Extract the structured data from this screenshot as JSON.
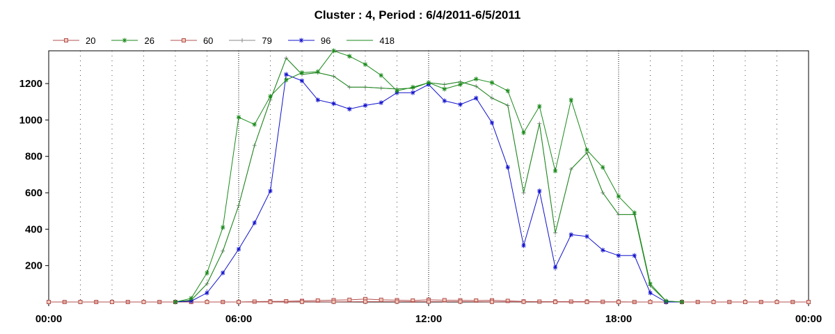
{
  "chart_data": {
    "type": "line",
    "title": "Cluster : 4, Period : 6/4/2011-6/5/2011",
    "xlabel": "",
    "ylabel": "",
    "x_unit": "hour",
    "xlim": [
      0,
      24
    ],
    "ylim": [
      0,
      1380
    ],
    "x_ticks": [
      0,
      6,
      12,
      18,
      24
    ],
    "x_tick_labels": [
      "00:00",
      "06:00",
      "12:00",
      "18:00",
      "00:00"
    ],
    "y_ticks": [
      200,
      400,
      600,
      800,
      1000,
      1200
    ],
    "y_tick_labels": [
      "200",
      "400",
      "600",
      "800",
      "1000",
      "1200"
    ],
    "grid": "vertical dotted",
    "legend_position": "top-left",
    "series": [
      {
        "name": "20",
        "color": "#b05050",
        "marker": "square",
        "x": [
          0.5,
          1,
          1.5,
          2,
          2.5,
          3,
          3.5,
          4,
          4.5,
          5,
          5.5,
          6,
          6.5,
          7,
          7.5,
          8,
          8.5,
          9,
          9.5,
          10,
          10.5,
          11,
          11.5,
          12,
          12.5,
          13,
          13.5,
          14,
          14.5,
          15,
          15.5,
          16,
          16.5,
          17,
          17.5,
          18,
          18.5,
          19,
          19.5,
          20,
          20.5,
          21,
          21.5,
          22,
          22.5,
          23,
          23.5,
          24
        ],
        "y": [
          0,
          0,
          0,
          0,
          0,
          0,
          0,
          0,
          0,
          0,
          0,
          0,
          2,
          3,
          4,
          6,
          8,
          10,
          12,
          16,
          12,
          10,
          8,
          12,
          10,
          9,
          8,
          9,
          6,
          3,
          2,
          2,
          2,
          2,
          1,
          1,
          0,
          0,
          0,
          0,
          0,
          0,
          0,
          0,
          0,
          0,
          0,
          0
        ]
      },
      {
        "name": "26",
        "color": "#1a8a1a",
        "marker": "star",
        "x": [
          4,
          4.5,
          5,
          5.5,
          6,
          6.5,
          7,
          7.5,
          8,
          8.5,
          9,
          9.5,
          10,
          10.5,
          11,
          11.5,
          12,
          12.5,
          13,
          13.5,
          14,
          14.5,
          15,
          15.5,
          16,
          16.5,
          17,
          17.5,
          18,
          18.5,
          19,
          19.5,
          20
        ],
        "y": [
          0,
          20,
          160,
          410,
          1015,
          975,
          1130,
          1220,
          1260,
          1265,
          1380,
          1350,
          1305,
          1245,
          1160,
          1180,
          1205,
          1170,
          1195,
          1225,
          1205,
          1160,
          930,
          1075,
          720,
          1110,
          835,
          740,
          580,
          490,
          100,
          5,
          0
        ]
      },
      {
        "name": "60",
        "color": "#b05050",
        "marker": "square",
        "x": [
          0,
          1,
          2,
          3,
          4,
          5,
          6,
          7,
          8,
          9,
          10,
          11,
          12,
          13,
          14,
          15,
          16,
          17,
          18,
          19,
          20,
          21,
          22,
          23,
          24
        ],
        "y": [
          0,
          0,
          0,
          0,
          0,
          0,
          0,
          0,
          1,
          1,
          2,
          2,
          2,
          2,
          1,
          1,
          0,
          0,
          0,
          0,
          0,
          0,
          0,
          0,
          0
        ]
      },
      {
        "name": "79",
        "color": "#888888",
        "marker": "plus",
        "x": [
          4,
          4.5,
          5,
          5.5,
          6,
          6.5,
          7,
          7.5,
          8,
          8.5,
          9,
          9.5,
          10,
          10.5,
          11,
          11.5,
          12,
          12.5,
          13,
          13.5,
          14,
          14.5,
          15,
          15.5,
          16,
          16.5,
          17,
          17.5,
          18,
          18.5,
          19,
          19.5,
          20
        ],
        "y": [
          0,
          10,
          100,
          280,
          530,
          860,
          1110,
          1340,
          1250,
          1260,
          1240,
          1180,
          1180,
          1175,
          1170,
          1175,
          1205,
          1195,
          1210,
          1185,
          1120,
          1080,
          600,
          980,
          380,
          730,
          820,
          600,
          480,
          480,
          90,
          5,
          0
        ]
      },
      {
        "name": "96",
        "color": "#1010cc",
        "marker": "star",
        "x": [
          4,
          4.5,
          5,
          5.5,
          6,
          6.5,
          7,
          7.5,
          8,
          8.5,
          9,
          9.5,
          10,
          10.5,
          11,
          11.5,
          12,
          12.5,
          13,
          13.5,
          14,
          14.5,
          15,
          15.5,
          16,
          16.5,
          17,
          17.5,
          18,
          18.5,
          19,
          19.5,
          20
        ],
        "y": [
          0,
          5,
          50,
          160,
          290,
          435,
          610,
          1250,
          1215,
          1110,
          1090,
          1060,
          1080,
          1095,
          1150,
          1150,
          1195,
          1105,
          1085,
          1120,
          985,
          740,
          310,
          610,
          190,
          370,
          360,
          285,
          255,
          255,
          50,
          0,
          0
        ]
      },
      {
        "name": "418",
        "color": "#1a8a1a",
        "marker": "none",
        "x": [
          4,
          4.5,
          5,
          5.5,
          6,
          6.5,
          7,
          7.5,
          8,
          8.5,
          9,
          9.5,
          10,
          10.5,
          11,
          11.5,
          12,
          12.5,
          13,
          13.5,
          14,
          14.5,
          15,
          15.5,
          16,
          16.5,
          17,
          17.5,
          18,
          18.5,
          19,
          19.5,
          20
        ],
        "y": [
          0,
          10,
          100,
          280,
          530,
          860,
          1110,
          1340,
          1250,
          1260,
          1240,
          1180,
          1180,
          1175,
          1170,
          1175,
          1205,
          1195,
          1210,
          1185,
          1120,
          1080,
          600,
          980,
          380,
          730,
          820,
          600,
          480,
          480,
          90,
          5,
          0
        ]
      }
    ]
  }
}
